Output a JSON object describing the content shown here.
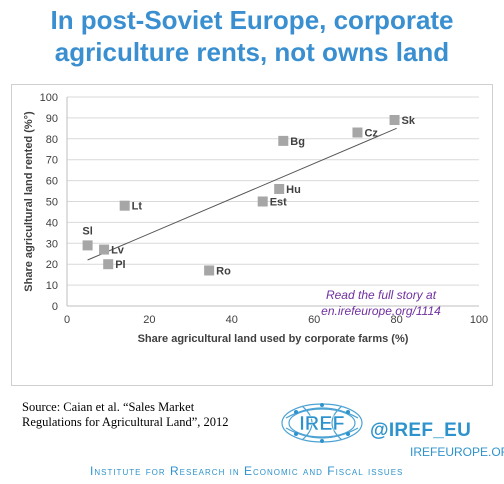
{
  "title": {
    "line1": "In post-Soviet Europe, corporate",
    "line2": "agriculture rents, not owns land"
  },
  "chart_data": {
    "type": "scatter",
    "xlabel": "Share agricultural land used by corporate farms (%)",
    "ylabel": "Share agricultural land rented (%°)",
    "xlim": [
      0,
      100
    ],
    "ylim": [
      0,
      100
    ],
    "x_ticks": [
      "0",
      "20",
      "40",
      "60",
      "80",
      "100"
    ],
    "y_ticks": [
      "0",
      "10",
      "20",
      "30",
      "40",
      "50",
      "60",
      "70",
      "80",
      "90",
      "100"
    ],
    "grid": "horizontal",
    "points": [
      {
        "label": "Sk",
        "x": 79.5,
        "y": 89
      },
      {
        "label": "Cz",
        "x": 70.5,
        "y": 83
      },
      {
        "label": "Bg",
        "x": 52.5,
        "y": 79
      },
      {
        "label": "Hu",
        "x": 51.5,
        "y": 56
      },
      {
        "label": "Est",
        "x": 47.5,
        "y": 50
      },
      {
        "label": "Lt",
        "x": 14,
        "y": 48
      },
      {
        "label": "Sl",
        "x": 5,
        "y": 29
      },
      {
        "label": "Lv",
        "x": 9,
        "y": 27
      },
      {
        "label": "Pl",
        "x": 10,
        "y": 20
      },
      {
        "label": "Ro",
        "x": 34.5,
        "y": 17
      }
    ],
    "trendline": {
      "x": [
        5,
        80
      ],
      "y": [
        22,
        85
      ]
    },
    "marker_color": "#a6a6a6",
    "annotation": {
      "line1": "Read the full story at",
      "line2": "en.irefeurope.org/1114",
      "color": "#7030a0"
    }
  },
  "footer": {
    "source_line1": "Source: Caian et al. “Sales Market",
    "source_line2": "Regulations  for Agricultural Land”, 2012",
    "logo_text": "IREF",
    "handle": "@IREF_EU",
    "site": "IREFEUROPE.ORG",
    "institute": "Institute for Research in Economic and Fiscal issues",
    "brand_color": "#2e93cc"
  }
}
